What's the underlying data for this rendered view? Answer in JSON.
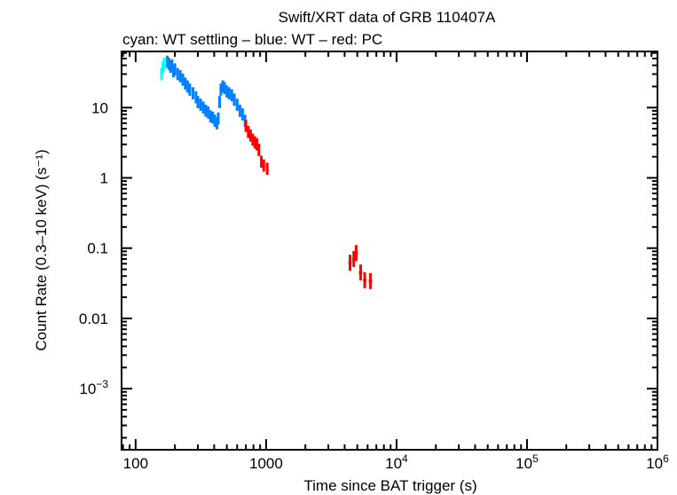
{
  "chart_data": {
    "type": "scatter",
    "title": "Swift/XRT data of GRB 110407A",
    "subtitle": "cyan: WT settling – blue: WT – red: PC",
    "xlabel": "Time since BAT trigger (s)",
    "ylabel": "Count Rate (0.3–10 keV) (s⁻¹)",
    "x_scale": "log",
    "y_scale": "log",
    "xlim": [
      78,
      1000000
    ],
    "ylim": [
      0.000135,
      63
    ],
    "grid": false,
    "x_ticks": [
      {
        "v": 100,
        "label": "100"
      },
      {
        "v": 1000,
        "label": "1000"
      },
      {
        "v": 10000,
        "label": "10",
        "sup": "4"
      },
      {
        "v": 100000,
        "label": "10",
        "sup": "5"
      },
      {
        "v": 1000000,
        "label": "10",
        "sup": "6"
      }
    ],
    "y_ticks": [
      {
        "v": 10,
        "label": "10"
      },
      {
        "v": 1,
        "label": "1"
      },
      {
        "v": 0.1,
        "label": "0.1"
      },
      {
        "v": 0.01,
        "label": "0.01"
      },
      {
        "v": 0.001,
        "label": "10",
        "sup": "−3"
      }
    ],
    "series": [
      {
        "name": "WT settling",
        "color": "#00ffff",
        "points": [
          [
            158,
            30
          ],
          [
            162,
            38
          ],
          [
            166,
            42
          ]
        ]
      },
      {
        "name": "WT",
        "color": "#0080ff",
        "points": [
          [
            175,
            45
          ],
          [
            180,
            42
          ],
          [
            185,
            38
          ],
          [
            190,
            40
          ],
          [
            195,
            33
          ],
          [
            200,
            35
          ],
          [
            210,
            30
          ],
          [
            220,
            28
          ],
          [
            230,
            25
          ],
          [
            240,
            22
          ],
          [
            250,
            20
          ],
          [
            260,
            18
          ],
          [
            275,
            16
          ],
          [
            290,
            14
          ],
          [
            300,
            12
          ],
          [
            315,
            11
          ],
          [
            330,
            10
          ],
          [
            345,
            9
          ],
          [
            360,
            8.5
          ],
          [
            375,
            7.5
          ],
          [
            390,
            7.2
          ],
          [
            405,
            6.5
          ],
          [
            420,
            6
          ],
          [
            430,
            7
          ],
          [
            440,
            12
          ],
          [
            450,
            18
          ],
          [
            465,
            20
          ],
          [
            480,
            19
          ],
          [
            500,
            17
          ],
          [
            520,
            16
          ],
          [
            545,
            15
          ],
          [
            570,
            13
          ],
          [
            600,
            11
          ],
          [
            630,
            9
          ],
          [
            660,
            8
          ],
          [
            690,
            6.5
          ]
        ]
      },
      {
        "name": "PC",
        "color": "#ff0000",
        "points": [
          [
            700,
            5.5
          ],
          [
            730,
            4.5
          ],
          [
            760,
            4
          ],
          [
            790,
            3.5
          ],
          [
            820,
            3.2
          ],
          [
            850,
            3.0
          ],
          [
            880,
            2.5
          ],
          [
            920,
            1.7
          ],
          [
            960,
            1.5
          ],
          [
            1020,
            1.35
          ],
          [
            4400,
            0.062
          ],
          [
            4700,
            0.07
          ],
          [
            4900,
            0.085
          ],
          [
            5300,
            0.045
          ],
          [
            5700,
            0.035
          ],
          [
            6300,
            0.034
          ]
        ]
      }
    ]
  }
}
